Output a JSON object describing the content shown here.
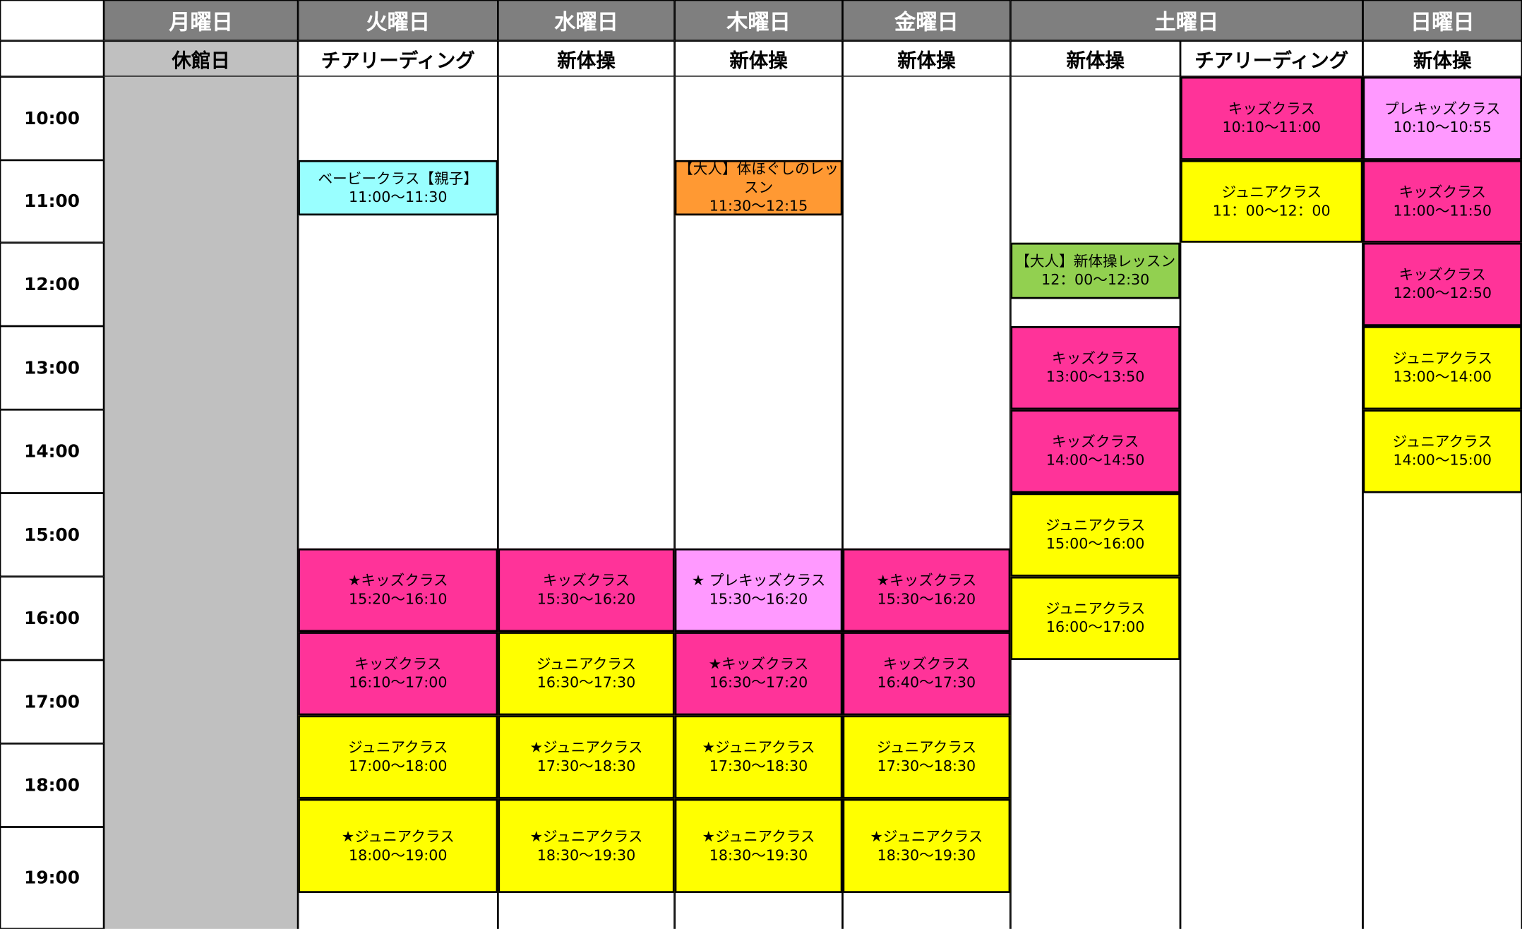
{
  "days": [
    {
      "name": "月曜日",
      "subjects": [
        "休館日"
      ]
    },
    {
      "name": "火曜日",
      "subjects": [
        "チアリーディング"
      ]
    },
    {
      "name": "水曜日",
      "subjects": [
        "新体操"
      ]
    },
    {
      "name": "木曜日",
      "subjects": [
        "新体操"
      ]
    },
    {
      "name": "金曜日",
      "subjects": [
        "新体操"
      ]
    },
    {
      "name": "土曜日",
      "subjects": [
        "新体操",
        "チアリーディング"
      ]
    },
    {
      "name": "日曜日",
      "subjects": [
        "新体操"
      ]
    }
  ],
  "times": [
    "10:00",
    "11:00",
    "12:00",
    "13:00",
    "14:00",
    "15:00",
    "16:00",
    "17:00",
    "18:00",
    "19:00"
  ],
  "columns": [
    {
      "blocks": [
        {
          "title": "ベービークラス【親子】",
          "time": "11:00～11:30"
        },
        {
          "title": "★キッズクラス",
          "time": "15:20～16:10"
        },
        {
          "title": "キッズクラス",
          "time": "16:10～17:00"
        },
        {
          "title": "ジュニアクラス",
          "time": "17:00～18:00"
        },
        {
          "title": "★ジュニアクラス",
          "time": "18:00～19:00"
        }
      ]
    },
    {
      "blocks": [
        {
          "title": "キッズクラス",
          "time": "15:30～16:20"
        },
        {
          "title": "ジュニアクラス",
          "time": "16:30～17:30"
        },
        {
          "title": "★ジュニアクラス",
          "time": "17:30～18:30"
        },
        {
          "title": "★ジュニアクラス",
          "time": "18:30～19:30"
        }
      ]
    },
    {
      "blocks": [
        {
          "title": "【大人】体ほぐしのレッスン",
          "time": "11:30～12:15"
        },
        {
          "title": "★ プレキッズクラス",
          "time": "15:30～16:20"
        },
        {
          "title": "★キッズクラス",
          "time": "16:30～17:20"
        },
        {
          "title": "★ジュニアクラス",
          "time": "17:30～18:30"
        },
        {
          "title": "★ジュニアクラス",
          "time": "18:30～19:30"
        }
      ]
    },
    {
      "blocks": [
        {
          "title": "★キッズクラス",
          "time": "15:30～16:20"
        },
        {
          "title": "キッズクラス",
          "time": "16:40～17:30"
        },
        {
          "title": "ジュニアクラス",
          "time": "17:30～18:30"
        },
        {
          "title": "★ジュニアクラス",
          "time": "18:30～19:30"
        }
      ]
    },
    {
      "blocks": [
        {
          "title": "【大人】新体操レッスン",
          "time": "12：00～12:30"
        },
        {
          "title": "キッズクラス",
          "time": "13:00～13:50"
        },
        {
          "title": "キッズクラス",
          "time": "14:00～14:50"
        },
        {
          "title": "ジュニアクラス",
          "time": "15:00～16:00"
        },
        {
          "title": "ジュニアクラス",
          "time": "16:00～17:00"
        }
      ]
    },
    {
      "blocks": [
        {
          "title": "キッズクラス",
          "time": "10:10～11:00"
        },
        {
          "title": "ジュニアクラス",
          "time": "11：00～12：00"
        }
      ]
    },
    {
      "blocks": [
        {
          "title": "プレキッズクラス",
          "time": "10:10～10:55"
        },
        {
          "title": "キッズクラス",
          "time": "11:00～11:50"
        },
        {
          "title": "キッズクラス",
          "time": "12:00～12:50"
        },
        {
          "title": "ジュニアクラス",
          "time": "13:00～14:00"
        },
        {
          "title": "ジュニアクラス",
          "time": "14:00～15:00"
        }
      ]
    }
  ]
}
